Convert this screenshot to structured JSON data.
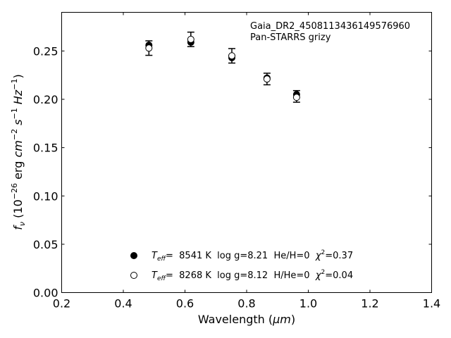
{
  "chart_data": {
    "type": "scatter",
    "xlabel_main": "Wavelength (",
    "xlabel_unit": "μm",
    "xlabel_close": ")",
    "ylabel_main": "f",
    "ylabel_sub": "ν",
    "ylabel_rest": " (10",
    "ylabel_exp1": "−26",
    "ylabel_erg": " erg ",
    "ylabel_cm": "cm",
    "ylabel_exp2": "−2",
    "ylabel_s": " s",
    "ylabel_exp3": "−1",
    "ylabel_hz": " Hz",
    "ylabel_exp4": "−1",
    "ylabel_close": ")",
    "xlim": [
      0.2,
      1.4
    ],
    "ylim": [
      0.0,
      0.29
    ],
    "xticks": [
      "0.2",
      "0.4",
      "0.6",
      "0.8",
      "1.0",
      "1.2",
      "1.4"
    ],
    "yticks": [
      "0.00",
      "0.05",
      "0.10",
      "0.15",
      "0.20",
      "0.25"
    ],
    "annotation": [
      "Gaia_DR2_4508113436149576960",
      "Pan-STARRS grizy"
    ],
    "observed": [
      {
        "x": 0.483,
        "y": 0.253,
        "err": 0.0075
      },
      {
        "x": 0.619,
        "y": 0.262,
        "err": 0.0075
      },
      {
        "x": 0.752,
        "y": 0.245,
        "err": 0.0075
      },
      {
        "x": 0.866,
        "y": 0.221,
        "err": 0.006
      },
      {
        "x": 0.962,
        "y": 0.203,
        "err": 0.006
      }
    ],
    "series": [
      {
        "name_main": "T",
        "name_sub": "eff",
        "name_rest": "=  8541 K  log g=8.21  He/H=0  ",
        "name_chi": "χ",
        "name_chi_exp": "2",
        "name_chi_val": "=0.37",
        "marker": "filled",
        "color": "#000000",
        "values": [
          {
            "x": 0.483,
            "y": 0.256
          },
          {
            "x": 0.619,
            "y": 0.259
          },
          {
            "x": 0.752,
            "y": 0.243
          },
          {
            "x": 0.866,
            "y": 0.222
          },
          {
            "x": 0.962,
            "y": 0.205
          }
        ]
      },
      {
        "name_main": "T",
        "name_sub": "eff",
        "name_rest": "=  8268 K  log g=8.12  H/He=0  ",
        "name_chi": "χ",
        "name_chi_exp": "2",
        "name_chi_val": "=0.04",
        "marker": "open",
        "color": "#000000",
        "values": [
          {
            "x": 0.483,
            "y": 0.253
          },
          {
            "x": 0.619,
            "y": 0.262
          },
          {
            "x": 0.752,
            "y": 0.245
          },
          {
            "x": 0.866,
            "y": 0.221
          },
          {
            "x": 0.962,
            "y": 0.202
          }
        ]
      }
    ],
    "legend_placement": "lower-center"
  }
}
